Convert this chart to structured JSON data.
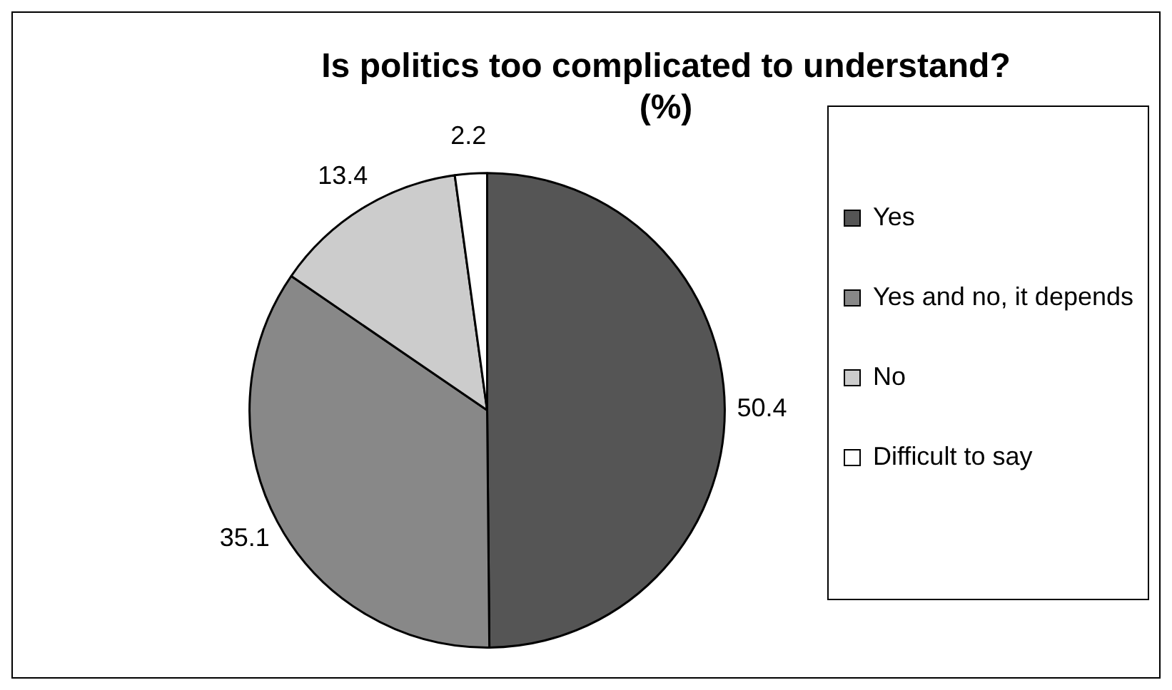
{
  "chart_data": {
    "type": "pie",
    "title": "Is politics too complicated to understand?\n(%)",
    "categories": [
      "Yes",
      "Yes and no, it depends",
      "No",
      "Difficult to say"
    ],
    "values": [
      50.4,
      35.1,
      13.4,
      2.2
    ],
    "colors": [
      "#555555",
      "#888888",
      "#cccccc",
      "#ffffff"
    ],
    "data_labels": true,
    "legend": "right"
  }
}
